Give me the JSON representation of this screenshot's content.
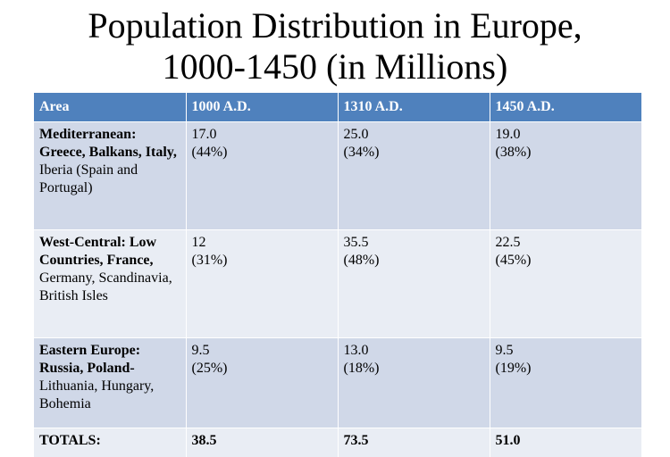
{
  "title": {
    "line1": "Population Distribution in Europe,",
    "line2": "1000-1450 (in Millions)"
  },
  "table": {
    "headers": [
      "Area",
      "1000 A.D.",
      "1310 A.D.",
      "1450 A.D."
    ],
    "rows": [
      {
        "area_bold": "Mediterranean: Greece, Balkans, Italy,",
        "area_plain": "Iberia (Spain and Portugal)",
        "cells": [
          {
            "value": "17.0",
            "pct": "(44%)"
          },
          {
            "value": "25.0",
            "pct": "(34%)"
          },
          {
            "value": "19.0",
            "pct": "(38%)"
          }
        ]
      },
      {
        "area_bold": "West-Central: Low Countries, France,",
        "area_plain": "Germany, Scandinavia, British Isles",
        "cells": [
          {
            "value": "12",
            "pct": "(31%)"
          },
          {
            "value": "35.5",
            "pct": "(48%)"
          },
          {
            "value": "22.5",
            "pct": "(45%)"
          }
        ]
      },
      {
        "area_bold": "Eastern Europe: Russia, Poland-",
        "area_plain": "Lithuania, Hungary, Bohemia",
        "cells": [
          {
            "value": "9.5",
            "pct": "(25%)"
          },
          {
            "value": "13.0",
            "pct": "(18%)"
          },
          {
            "value": "9.5",
            "pct": "(19%)"
          }
        ]
      }
    ],
    "totals": {
      "label": "TOTALS:",
      "values": [
        "38.5",
        "73.5",
        "51.0"
      ]
    }
  },
  "colors": {
    "header_bg": "#4f81bd",
    "row_dark": "#d0d8e8",
    "row_light": "#e9edf4"
  }
}
